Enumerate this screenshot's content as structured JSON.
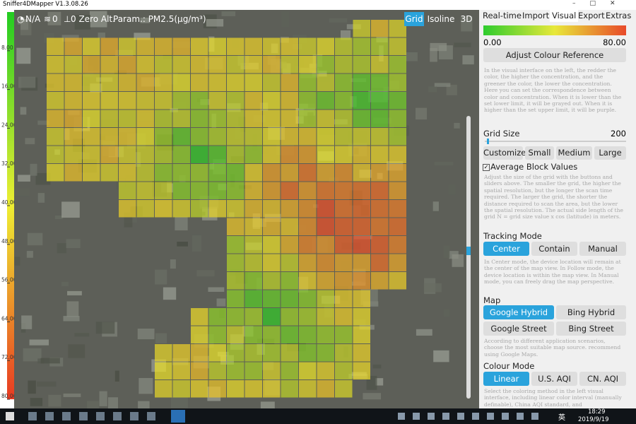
{
  "window": {
    "title": "Sniffer4DMapper V1.3.08.26"
  },
  "toolbar": {
    "status": "N/A",
    "count": "0",
    "altitude": "0 Zero Alt.",
    "param": "Param.: PM2.5(μg/m³)",
    "views": [
      "Grid",
      "Isoline",
      "3D"
    ]
  },
  "scale": {
    "ylim": [
      0,
      80
    ],
    "yticks": [
      {
        "value": 8,
        "label": "8.00"
      },
      {
        "value": 16,
        "label": "16.00"
      },
      {
        "value": 24,
        "label": "24.00"
      },
      {
        "value": 32,
        "label": "32.00"
      },
      {
        "value": 40,
        "label": "40.00"
      },
      {
        "value": 48,
        "label": "48.00"
      },
      {
        "value": 56,
        "label": "56.00"
      },
      {
        "value": 64,
        "label": "64.00"
      },
      {
        "value": 72,
        "label": "72.00"
      },
      {
        "value": 80,
        "label": "80.00"
      }
    ]
  },
  "panel": {
    "tabs": [
      "Real-time",
      "Import",
      "Visual",
      "Export",
      "Extras"
    ],
    "gradient": {
      "min": "0.00",
      "max": "80.00"
    },
    "adjust_button": "Adjust Colour Reference",
    "colour_note": "In the visual interface on the left, the redder the color, the higher the concentration, and the greener the color, the lower the concentration. Here you can set the correspondence between color and concentration. When it is lower than the set lower limit, it will be grayed out. When it is higher than the set upper limit, it will be purple.",
    "grid_size": {
      "label": "Grid Size",
      "value": "200",
      "buttons": [
        "Customize",
        "Small",
        "Medium",
        "Large"
      ]
    },
    "average": "Average Block Values",
    "grid_note": "Adjust the size of the grid with the buttons and sliders above. The smaller the grid, the higher the spatial resolution, but the longer the scan time required. The larger the grid, the shorter the distance required to scan the area, but the lower the spatial resolution. The actual side length of the grid N = grid size value x cos (latitude) in meters.",
    "tracking": {
      "label": "Tracking Mode",
      "buttons": [
        "Center",
        "Contain",
        "Manual"
      ],
      "note": "In Center mode, the device location will remain at the center of the map view. In Follow mode, the device location is within the map view. In Manual mode, you can freely drag the map perspective."
    },
    "map": {
      "label": "Map",
      "buttons": [
        "Google Hybrid",
        "Bing Hybrid",
        "Google Street",
        "Bing Street"
      ],
      "note": "According to different application scenarios, choose the most suitable map source. recommend using Google Maps."
    },
    "colour_mode": {
      "label": "Colour Mode",
      "buttons": [
        "Linear",
        "U.S. AQI",
        "CN. AQI"
      ],
      "note": "Select the coloring method in the left visual interface, including linear color interval (manually definable), China AQI standard, and"
    }
  },
  "taskbar": {
    "ime": "英",
    "time": "18:29",
    "date": "2019/9/19"
  }
}
